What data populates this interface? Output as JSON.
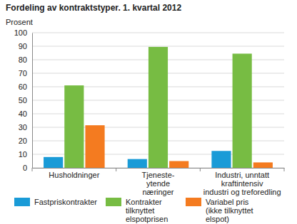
{
  "chart_data": {
    "type": "bar",
    "title": "Fordeling av kontraktstyper. 1. kvartal 2012",
    "y_label": "Prosent",
    "categories": [
      "Husholdninger",
      "Tjeneste-\nytende\nnæringer",
      "Industri, unntatt\nkraftintensiv\nindustri og treforedling"
    ],
    "series": [
      {
        "name": "Fastpriskontrakter",
        "color": "#1a9bd7",
        "values": [
          8,
          6.5,
          12.5
        ]
      },
      {
        "name": "Kontrakter\ntilknyttet\nelspotprisen",
        "color": "#77bc43",
        "values": [
          61,
          89.5,
          84.5
        ]
      },
      {
        "name": "Variabel pris\n(ikke tilknyttet\nelspot)",
        "color": "#f47b20",
        "values": [
          31.5,
          5,
          4
        ]
      }
    ],
    "ylim": [
      0,
      100
    ],
    "yticks": [
      0,
      10,
      20,
      30,
      40,
      50,
      60,
      70,
      80,
      90,
      100
    ],
    "grid": true,
    "legend": "bottom"
  }
}
